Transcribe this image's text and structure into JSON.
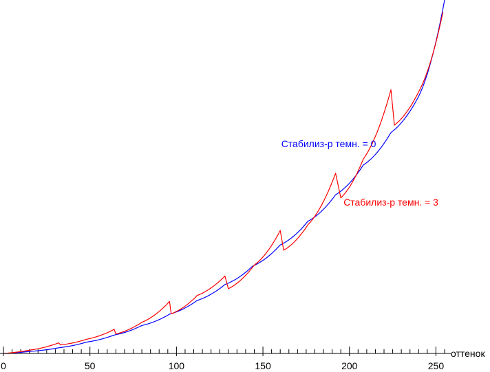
{
  "chart_data": {
    "type": "line",
    "title": "",
    "xlabel": "оттенок",
    "ylabel": "",
    "xlim": [
      0,
      255
    ],
    "ylim": [
      0,
      1
    ],
    "x_ticks": [
      0,
      50,
      100,
      150,
      200,
      250
    ],
    "x_tick_labels": [
      "0",
      "50",
      "100",
      "150",
      "200",
      "250"
    ],
    "grid": false,
    "series": [
      {
        "name": "Стабилиз-р темн. = 0",
        "color": "#0000ff",
        "x": [
          0,
          16,
          32,
          48,
          64,
          80,
          96,
          112,
          128,
          144,
          160,
          176,
          192,
          208,
          224,
          240,
          255
        ],
        "y": [
          0.0,
          0.006,
          0.016,
          0.032,
          0.052,
          0.079,
          0.111,
          0.15,
          0.195,
          0.247,
          0.307,
          0.374,
          0.449,
          0.533,
          0.625,
          0.727,
          1.0
        ]
      },
      {
        "name": "Стабилиз-р темн. = 3",
        "color": "#ff0000",
        "x": [
          0,
          16,
          32,
          33,
          48,
          64,
          65,
          80,
          96,
          97,
          112,
          128,
          130,
          145,
          160,
          162,
          176,
          192,
          195,
          208,
          224,
          226,
          240,
          254
        ],
        "y": [
          0.0,
          0.01,
          0.03,
          0.024,
          0.04,
          0.068,
          0.055,
          0.088,
          0.147,
          0.112,
          0.164,
          0.219,
          0.183,
          0.25,
          0.348,
          0.292,
          0.364,
          0.51,
          0.44,
          0.55,
          0.746,
          0.646,
          0.74,
          0.965
        ]
      }
    ],
    "annotations": [
      {
        "text": "Стабилиз-р темн. = 0",
        "series": 0,
        "color": "#0000ff",
        "at": [
          188,
          0.584
        ]
      },
      {
        "text": "Стабилиз-р темн. = 3",
        "series": 1,
        "color": "#ff0000",
        "at": [
          224,
          0.418
        ]
      }
    ]
  }
}
